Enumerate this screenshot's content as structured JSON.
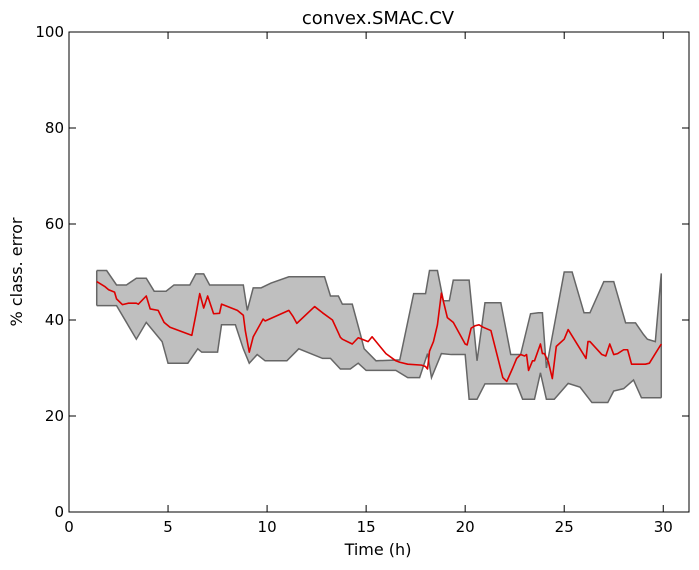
{
  "chart_data": {
    "type": "line",
    "title": "convex.SMAC.CV",
    "xlabel": "Time (h)",
    "ylabel": "% class. error",
    "xlim": [
      0,
      31.3
    ],
    "ylim": [
      0,
      100
    ],
    "xticks": [
      0,
      5,
      10,
      15,
      20,
      25,
      30
    ],
    "yticks": [
      0,
      20,
      40,
      60,
      80,
      100
    ],
    "grid": false,
    "colors": {
      "band_fill": "#bfbfbf",
      "band_edge": "#666666",
      "median": "#dd0000"
    },
    "series": [
      {
        "name": "",
        "kind": "band-upper",
        "x": [
          1.4,
          1.9,
          2.4,
          2.9,
          3.4,
          3.9,
          4.3,
          4.9,
          5.3,
          6.1,
          6.4,
          6.8,
          7.1,
          8.8,
          9.0,
          9.3,
          9.7,
          10.2,
          11.1,
          12.4,
          12.9,
          13.2,
          13.6,
          13.8,
          14.3,
          14.7,
          14.9,
          15.5,
          16.7,
          17.4,
          18.0,
          18.2,
          18.6,
          18.9,
          19.2,
          19.4,
          20.2,
          20.6,
          21.0,
          21.8,
          22.3,
          22.8,
          23.3,
          23.7,
          23.9,
          24.1,
          25.0,
          25.4,
          26.0,
          26.3,
          27.0,
          27.5,
          28.1,
          28.6,
          29.0,
          29.2,
          29.6,
          29.9
        ],
        "values": [
          50.3,
          50.3,
          47.3,
          47.3,
          48.7,
          48.7,
          46.0,
          46.0,
          47.3,
          47.3,
          49.6,
          49.6,
          47.3,
          47.3,
          42.0,
          46.7,
          46.7,
          47.7,
          49.0,
          49.0,
          49.0,
          45.0,
          45.0,
          43.3,
          43.3,
          37.2,
          34.0,
          31.5,
          31.7,
          45.5,
          45.5,
          50.3,
          50.3,
          44.0,
          44.0,
          48.3,
          48.3,
          31.5,
          43.6,
          43.6,
          32.8,
          32.8,
          41.3,
          41.5,
          41.5,
          30.0,
          50.0,
          50.0,
          41.5,
          41.5,
          48.0,
          48.0,
          39.4,
          39.4,
          37.0,
          36.0,
          35.5,
          49.7
        ]
      },
      {
        "name": "",
        "kind": "band-lower",
        "x": [
          1.4,
          2.4,
          3.4,
          3.9,
          4.7,
          5.0,
          6.0,
          6.5,
          6.7,
          7.5,
          7.7,
          8.4,
          8.8,
          9.1,
          9.5,
          9.9,
          11.0,
          11.6,
          12.8,
          13.2,
          13.7,
          14.2,
          14.6,
          15.0,
          16.5,
          17.1,
          17.7,
          18.1,
          18.3,
          18.8,
          19.3,
          20.0,
          20.2,
          20.6,
          21.0,
          21.8,
          22.6,
          22.9,
          23.5,
          23.8,
          24.1,
          24.5,
          25.2,
          25.8,
          26.4,
          26.6,
          27.2,
          27.5,
          28.0,
          28.5,
          28.9,
          29.3,
          29.9
        ],
        "values": [
          43.0,
          43.0,
          36.0,
          39.5,
          35.5,
          31.0,
          31.0,
          34.0,
          33.3,
          33.3,
          39.0,
          39.0,
          34.0,
          31.0,
          32.8,
          31.5,
          31.5,
          34.0,
          32.0,
          32.0,
          29.8,
          29.8,
          31.0,
          29.5,
          29.5,
          28.0,
          28.0,
          33.0,
          28.0,
          33.0,
          32.8,
          32.8,
          23.5,
          23.5,
          26.7,
          26.7,
          26.7,
          23.5,
          23.5,
          29.0,
          23.5,
          23.5,
          26.8,
          26.0,
          22.8,
          22.8,
          22.8,
          25.2,
          25.7,
          27.5,
          23.8,
          23.8,
          23.8
        ]
      },
      {
        "name": "",
        "kind": "median",
        "x": [
          1.4,
          1.8,
          2.0,
          2.3,
          2.4,
          2.7,
          3.0,
          3.4,
          3.5,
          3.9,
          4.1,
          4.5,
          4.8,
          5.1,
          6.2,
          6.4,
          6.6,
          6.8,
          7.0,
          7.3,
          7.6,
          7.7,
          8.5,
          8.8,
          8.9,
          9.1,
          9.3,
          9.8,
          9.9,
          11.1,
          11.3,
          11.5,
          12.4,
          12.8,
          13.3,
          13.6,
          13.7,
          13.8,
          14.3,
          14.6,
          14.8,
          15.1,
          15.3,
          16.0,
          16.5,
          16.7,
          17.1,
          17.8,
          18.0,
          18.1,
          18.2,
          18.4,
          18.6,
          18.8,
          19.1,
          19.4,
          20.0,
          20.1,
          20.3,
          20.5,
          20.7,
          20.9,
          21.3,
          21.9,
          22.1,
          22.4,
          22.6,
          22.8,
          23.0,
          23.1,
          23.2,
          23.4,
          23.5,
          23.8,
          23.9,
          24.0,
          24.2,
          24.4,
          24.6,
          25.0,
          25.2,
          26.1,
          26.2,
          26.3,
          26.9,
          27.1,
          27.3,
          27.5,
          27.7,
          28.0,
          28.2,
          28.4,
          29.1,
          29.3,
          29.6,
          29.9
        ],
        "values": [
          48.0,
          47.0,
          46.3,
          45.8,
          44.4,
          43.2,
          43.5,
          43.5,
          43.3,
          45.0,
          42.3,
          42.0,
          39.5,
          38.5,
          36.8,
          41.0,
          45.5,
          42.5,
          45.0,
          41.3,
          41.4,
          43.3,
          42.0,
          41.0,
          37.8,
          33.3,
          36.5,
          40.2,
          39.8,
          42.0,
          40.8,
          39.3,
          42.8,
          41.5,
          40.0,
          37.3,
          36.4,
          36.0,
          35.0,
          36.3,
          36.0,
          35.5,
          36.5,
          33.0,
          31.5,
          31.2,
          30.8,
          30.6,
          30.3,
          29.8,
          33.5,
          35.5,
          39.0,
          45.6,
          40.5,
          39.5,
          35.0,
          34.8,
          38.3,
          38.8,
          39.0,
          38.5,
          37.8,
          28.0,
          27.2,
          30.0,
          32.0,
          32.8,
          32.5,
          32.8,
          29.5,
          31.5,
          31.5,
          35.0,
          33.0,
          33.0,
          31.3,
          27.8,
          34.5,
          36.0,
          38.0,
          32.0,
          35.5,
          35.5,
          32.8,
          32.5,
          35.0,
          32.8,
          33.0,
          33.8,
          33.8,
          30.8,
          30.8,
          31.0,
          33.0,
          35.0
        ]
      }
    ]
  }
}
